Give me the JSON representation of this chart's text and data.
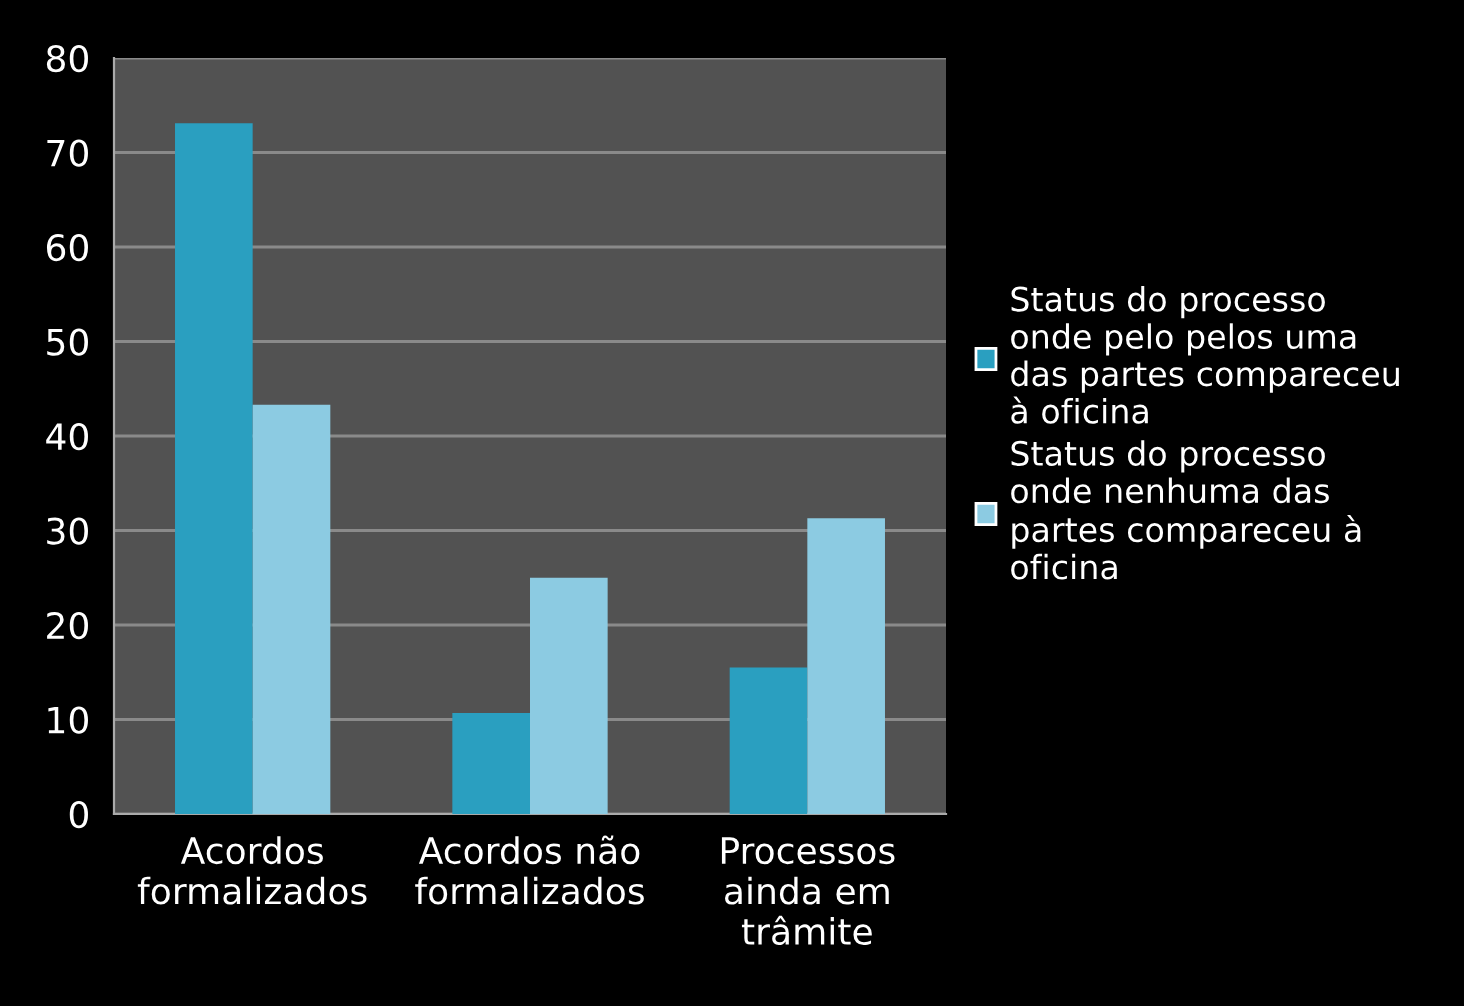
{
  "chart_data": {
    "type": "bar",
    "categories": [
      "Acordos\nformalizados",
      "Acordos não\nformalizados",
      "Processos\nainda em\ntrâmite"
    ],
    "series": [
      {
        "name": "Status do processo onde pelo pelos uma das partes compareceu à oficina",
        "color": "#2a9fc0",
        "values": [
          73.1,
          10.7,
          15.5
        ]
      },
      {
        "name": "Status do processo onde nenhuma das partes compareceu à oficina",
        "color": "#8ccbe2",
        "values": [
          43.3,
          25.0,
          31.3
        ]
      }
    ],
    "ylim": [
      0,
      80
    ],
    "yticks": [
      0,
      10,
      20,
      30,
      40,
      50,
      60,
      70,
      80
    ],
    "grid": "y",
    "legend": "right"
  }
}
